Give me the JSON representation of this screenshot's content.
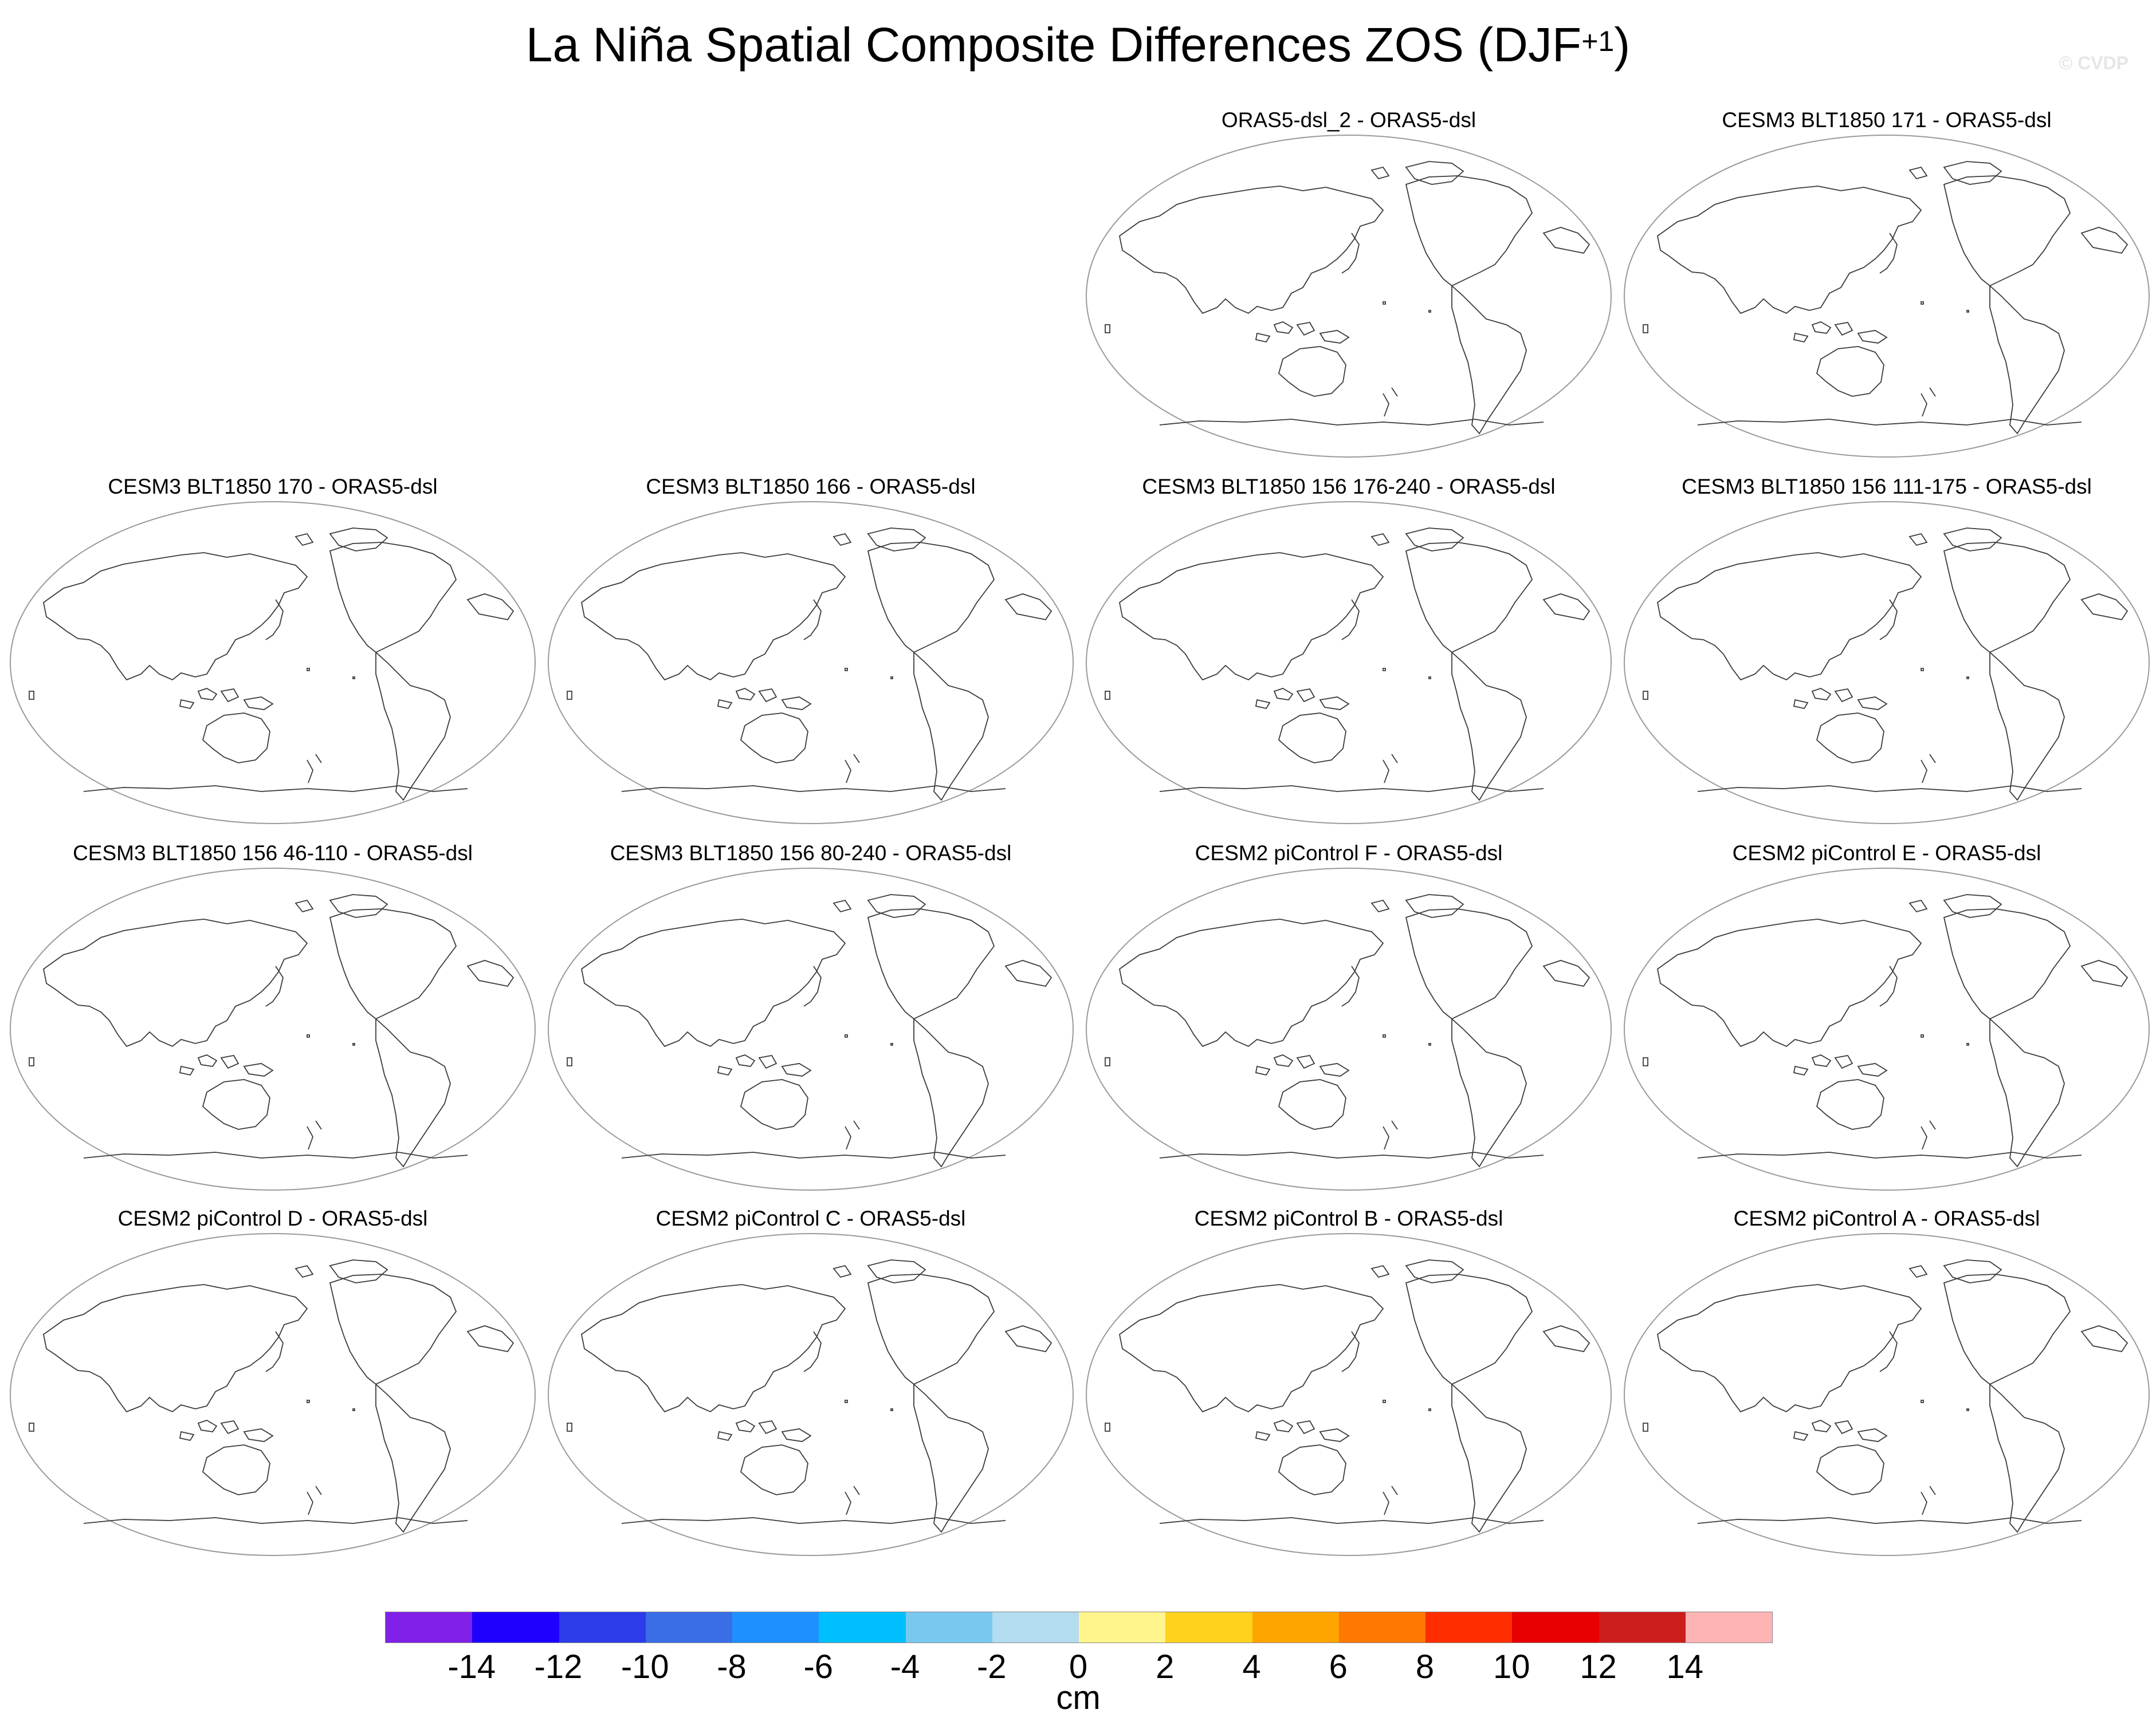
{
  "title": {
    "main": "La Niña Spatial Composite Differences ZOS (DJF",
    "superscript": "+1",
    "close": ")"
  },
  "watermark": "© CVDP",
  "panels": [
    {
      "title": "ORAS5-dsl_2 - ORAS5-dsl"
    },
    {
      "title": "CESM3 BLT1850 171 - ORAS5-dsl"
    },
    {
      "title": "CESM3 BLT1850 170 - ORAS5-dsl"
    },
    {
      "title": "CESM3 BLT1850 166 - ORAS5-dsl"
    },
    {
      "title": "CESM3 BLT1850 156 176-240 - ORAS5-dsl"
    },
    {
      "title": "CESM3 BLT1850 156 111-175 - ORAS5-dsl"
    },
    {
      "title": "CESM3 BLT1850 156 46-110 - ORAS5-dsl"
    },
    {
      "title": "CESM3 BLT1850 156 80-240 - ORAS5-dsl"
    },
    {
      "title": "CESM2 piControl F - ORAS5-dsl"
    },
    {
      "title": "CESM2 piControl E - ORAS5-dsl"
    },
    {
      "title": "CESM2 piControl D - ORAS5-dsl"
    },
    {
      "title": "CESM2 piControl C - ORAS5-dsl"
    },
    {
      "title": "CESM2 piControl B - ORAS5-dsl"
    },
    {
      "title": "CESM2 piControl A - ORAS5-dsl"
    }
  ],
  "colorbar": {
    "colors": [
      "#8020e8",
      "#1e00ff",
      "#2c3ce8",
      "#3a6ee6",
      "#1e90ff",
      "#00bfff",
      "#78c8f0",
      "#b4dcf0",
      "#fff58c",
      "#ffd21e",
      "#ffa500",
      "#ff7800",
      "#ff2d00",
      "#e60000",
      "#cd1e1e",
      "#ffb4b4"
    ],
    "ticks": [
      "-14",
      "-12",
      "-10",
      "-8",
      "-6",
      "-4",
      "-2",
      "0",
      "2",
      "4",
      "6",
      "8",
      "10",
      "12",
      "14"
    ],
    "units": "cm"
  }
}
